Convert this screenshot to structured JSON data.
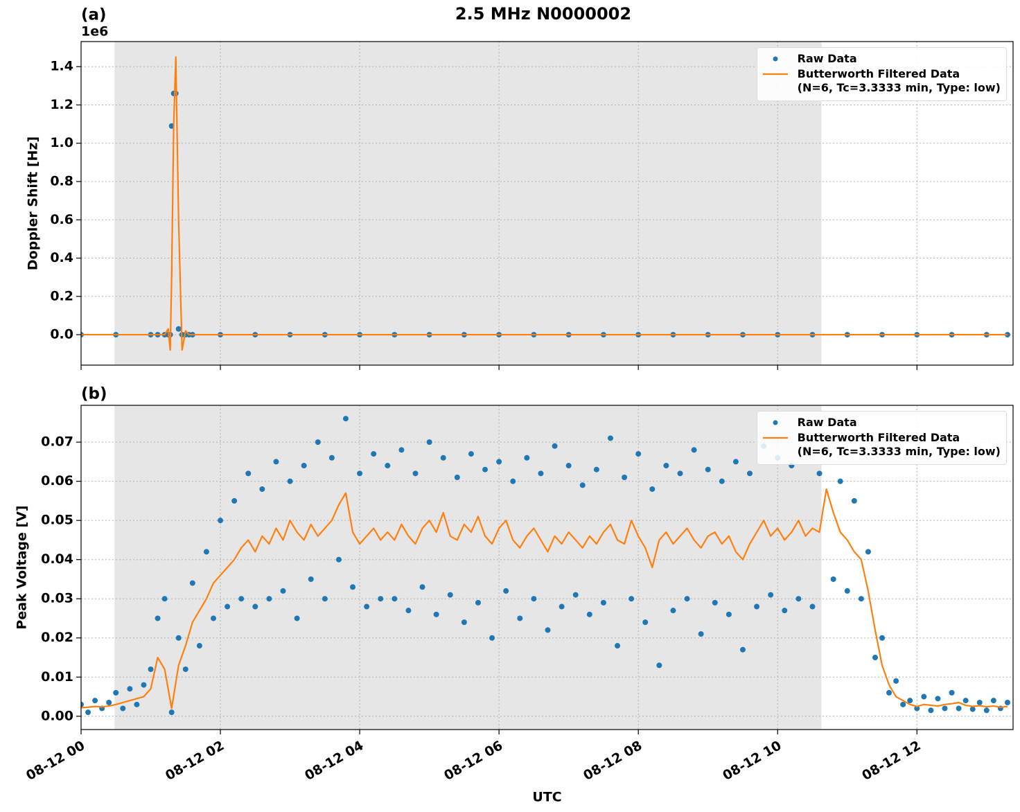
{
  "chart_data": [
    {
      "type": "line",
      "title": "2.5 MHz N0000002",
      "panel_label": "(a)",
      "ylabel": "Doppler Shift [Hz]",
      "y_offset_label": "1e6",
      "x": [
        0,
        0.5,
        1,
        1.1,
        1.2,
        1.25,
        1.28,
        1.3,
        1.33,
        1.36,
        1.4,
        1.45,
        1.5,
        1.55,
        1.6,
        2,
        2.5,
        3,
        3.5,
        4,
        4.5,
        5,
        5.5,
        6,
        6.5,
        7,
        7.5,
        8,
        8.5,
        9,
        9.5,
        10,
        10.5,
        11,
        11.5,
        12,
        12.5,
        13,
        13.3
      ],
      "series": [
        {
          "name": "Raw Data",
          "style": "dots",
          "color": "#1f77b4",
          "values": [
            0,
            0,
            0,
            0,
            0,
            0,
            0,
            1090000,
            1260000,
            1260000,
            30000,
            0,
            0,
            0,
            0,
            0,
            0,
            0,
            0,
            0,
            0,
            0,
            0,
            0,
            0,
            0,
            0,
            0,
            0,
            0,
            0,
            0,
            0,
            0,
            0,
            0,
            0,
            0,
            0
          ]
        },
        {
          "name": "Butterworth Filtered Data\n(N=6, Tc=3.3333 min, Type: low)",
          "style": "line",
          "color": "#ff7f0e",
          "values": [
            0,
            0,
            0,
            0,
            0,
            30000,
            -80000,
            300000,
            1100000,
            1450000,
            600000,
            -80000,
            20000,
            0,
            0,
            0,
            0,
            0,
            0,
            0,
            0,
            0,
            0,
            0,
            0,
            0,
            0,
            0,
            0,
            0,
            0,
            0,
            0,
            0,
            0,
            0,
            0,
            0,
            0
          ]
        }
      ],
      "xlim": [
        0,
        13.38
      ],
      "xticks": [
        0,
        2,
        4,
        6,
        8,
        10,
        12
      ],
      "show_xtick_labels": false,
      "ylim": [
        -159000,
        1531000
      ],
      "yticks": [
        {
          "value": 0,
          "label": "0.0"
        },
        {
          "value": 200000,
          "label": "0.2"
        },
        {
          "value": 400000,
          "label": "0.4"
        },
        {
          "value": 600000,
          "label": "0.6"
        },
        {
          "value": 800000,
          "label": "0.8"
        },
        {
          "value": 1000000,
          "label": "1.0"
        },
        {
          "value": 1200000,
          "label": "1.2"
        },
        {
          "value": 1400000,
          "label": "1.4"
        }
      ],
      "grid": true,
      "legend_loc": "upper right",
      "shade": {
        "start": 0.48,
        "end": 10.63,
        "color": "#e6e6e6"
      }
    },
    {
      "type": "line",
      "panel_label": "(b)",
      "ylabel": "Peak Voltage [V]",
      "xlabel": "UTC",
      "x": [
        0,
        0.1,
        0.2,
        0.3,
        0.4,
        0.5,
        0.6,
        0.7,
        0.8,
        0.9,
        1,
        1.1,
        1.2,
        1.3,
        1.4,
        1.5,
        1.6,
        1.7,
        1.8,
        1.9,
        2,
        2.1,
        2.2,
        2.3,
        2.4,
        2.5,
        2.6,
        2.7,
        2.8,
        2.9,
        3,
        3.1,
        3.2,
        3.3,
        3.4,
        3.5,
        3.6,
        3.7,
        3.8,
        3.9,
        4,
        4.1,
        4.2,
        4.3,
        4.4,
        4.5,
        4.6,
        4.7,
        4.8,
        4.9,
        5,
        5.1,
        5.2,
        5.3,
        5.4,
        5.5,
        5.6,
        5.7,
        5.8,
        5.9,
        6,
        6.1,
        6.2,
        6.3,
        6.4,
        6.5,
        6.6,
        6.7,
        6.8,
        6.9,
        7,
        7.1,
        7.2,
        7.3,
        7.4,
        7.5,
        7.6,
        7.7,
        7.8,
        7.9,
        8,
        8.1,
        8.2,
        8.3,
        8.4,
        8.5,
        8.6,
        8.7,
        8.8,
        8.9,
        9,
        9.1,
        9.2,
        9.3,
        9.4,
        9.5,
        9.6,
        9.7,
        9.8,
        9.9,
        10,
        10.1,
        10.2,
        10.3,
        10.4,
        10.5,
        10.6,
        10.7,
        10.8,
        10.9,
        11,
        11.1,
        11.2,
        11.3,
        11.4,
        11.5,
        11.6,
        11.7,
        11.8,
        11.9,
        12,
        12.1,
        12.2,
        12.3,
        12.4,
        12.5,
        12.6,
        12.7,
        12.8,
        12.9,
        13,
        13.1,
        13.2,
        13.3
      ],
      "series": [
        {
          "name": "Raw Data",
          "style": "dots",
          "color": "#1f77b4",
          "values": [
            0.003,
            0.001,
            0.004,
            0.002,
            0.0035,
            0.006,
            0.002,
            0.007,
            0.003,
            0.008,
            0.012,
            0.025,
            0.03,
            0.001,
            0.02,
            0.012,
            0.034,
            0.018,
            0.042,
            0.025,
            0.05,
            0.028,
            0.055,
            0.03,
            0.062,
            0.028,
            0.058,
            0.03,
            0.065,
            0.032,
            0.06,
            0.025,
            0.064,
            0.035,
            0.07,
            0.03,
            0.066,
            0.04,
            0.076,
            0.033,
            0.062,
            0.028,
            0.067,
            0.03,
            0.064,
            0.03,
            0.068,
            0.027,
            0.062,
            0.033,
            0.07,
            0.026,
            0.066,
            0.031,
            0.061,
            0.024,
            0.067,
            0.029,
            0.063,
            0.02,
            0.065,
            0.032,
            0.06,
            0.025,
            0.066,
            0.03,
            0.062,
            0.022,
            0.069,
            0.028,
            0.064,
            0.031,
            0.059,
            0.026,
            0.063,
            0.029,
            0.071,
            0.018,
            0.061,
            0.03,
            0.067,
            0.024,
            0.058,
            0.013,
            0.064,
            0.027,
            0.062,
            0.03,
            0.068,
            0.021,
            0.063,
            0.029,
            0.06,
            0.026,
            0.065,
            0.017,
            0.062,
            0.028,
            0.069,
            0.031,
            0.066,
            0.027,
            0.064,
            0.03,
            0.068,
            0.028,
            0.062,
            0.068,
            0.035,
            0.06,
            0.032,
            0.055,
            0.03,
            0.042,
            0.015,
            0.02,
            0.006,
            0.009,
            0.003,
            0.004,
            0.002,
            0.005,
            0.0015,
            0.0045,
            0.002,
            0.006,
            0.002,
            0.004,
            0.0018,
            0.0035,
            0.0015,
            0.004,
            0.002,
            0.0035
          ]
        },
        {
          "name": "Butterworth Filtered Data\n(N=6, Tc=3.3333 min, Type: low)",
          "style": "line",
          "color": "#ff7f0e",
          "values": [
            0.0022,
            0.0023,
            0.0025,
            0.0024,
            0.0026,
            0.003,
            0.0035,
            0.004,
            0.0045,
            0.005,
            0.007,
            0.015,
            0.012,
            0.002,
            0.013,
            0.018,
            0.024,
            0.027,
            0.03,
            0.034,
            0.036,
            0.038,
            0.04,
            0.043,
            0.045,
            0.042,
            0.046,
            0.044,
            0.048,
            0.045,
            0.05,
            0.047,
            0.045,
            0.049,
            0.046,
            0.048,
            0.05,
            0.054,
            0.057,
            0.047,
            0.044,
            0.046,
            0.048,
            0.045,
            0.047,
            0.045,
            0.049,
            0.046,
            0.044,
            0.048,
            0.05,
            0.047,
            0.052,
            0.046,
            0.045,
            0.049,
            0.047,
            0.051,
            0.046,
            0.044,
            0.048,
            0.05,
            0.045,
            0.043,
            0.046,
            0.048,
            0.045,
            0.042,
            0.046,
            0.044,
            0.047,
            0.045,
            0.043,
            0.046,
            0.044,
            0.047,
            0.049,
            0.045,
            0.044,
            0.05,
            0.046,
            0.043,
            0.038,
            0.045,
            0.047,
            0.044,
            0.046,
            0.048,
            0.045,
            0.043,
            0.046,
            0.047,
            0.044,
            0.046,
            0.042,
            0.04,
            0.044,
            0.047,
            0.05,
            0.046,
            0.048,
            0.045,
            0.047,
            0.05,
            0.046,
            0.048,
            0.047,
            0.058,
            0.052,
            0.047,
            0.045,
            0.042,
            0.04,
            0.032,
            0.022,
            0.013,
            0.008,
            0.005,
            0.004,
            0.003,
            0.0025,
            0.003,
            0.0028,
            0.0026,
            0.003,
            0.0032,
            0.0035,
            0.0028,
            0.0025,
            0.0027,
            0.0024,
            0.0026,
            0.0023,
            0.0025
          ]
        }
      ],
      "xlim": [
        0,
        13.38
      ],
      "xticks": [
        {
          "value": 0,
          "label": "08-12 00"
        },
        {
          "value": 2,
          "label": "08-12 02"
        },
        {
          "value": 4,
          "label": "08-12 04"
        },
        {
          "value": 6,
          "label": "08-12 06"
        },
        {
          "value": 8,
          "label": "08-12 08"
        },
        {
          "value": 10,
          "label": "08-12 10"
        },
        {
          "value": 12,
          "label": "08-12 12"
        }
      ],
      "show_xtick_labels": true,
      "ylim": [
        -0.0034,
        0.0794
      ],
      "yticks": [
        {
          "value": 0,
          "label": "0.00"
        },
        {
          "value": 0.01,
          "label": "0.01"
        },
        {
          "value": 0.02,
          "label": "0.02"
        },
        {
          "value": 0.03,
          "label": "0.03"
        },
        {
          "value": 0.04,
          "label": "0.04"
        },
        {
          "value": 0.05,
          "label": "0.05"
        },
        {
          "value": 0.06,
          "label": "0.06"
        },
        {
          "value": 0.07,
          "label": "0.07"
        }
      ],
      "grid": true,
      "legend_loc": "upper right",
      "shade": {
        "start": 0.48,
        "end": 10.63,
        "color": "#e6e6e6"
      }
    }
  ]
}
